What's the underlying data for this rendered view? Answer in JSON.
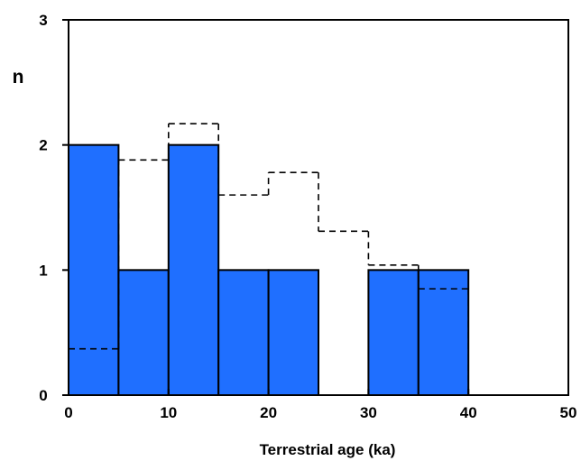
{
  "chart_data": {
    "type": "bar",
    "xlabel": "Terrestrial age (ka)",
    "ylabel": "n",
    "xlim": [
      0,
      50
    ],
    "ylim": [
      0,
      3
    ],
    "x_ticks": [
      "0",
      "10",
      "20",
      "30",
      "40",
      "50"
    ],
    "y_ticks": [
      "0",
      "1",
      "2",
      "3"
    ],
    "bin_width": 5,
    "bin_starts": [
      0,
      5,
      10,
      15,
      20,
      25,
      30,
      35,
      40,
      45
    ],
    "series": [
      {
        "style": "filled-bars",
        "color": "#1f6fff",
        "values": [
          2,
          1,
          2,
          1,
          1,
          0,
          1,
          1,
          0,
          0
        ]
      },
      {
        "style": "dashed-outline",
        "color": "#000000",
        "values": [
          0.37,
          1.88,
          2.17,
          1.6,
          1.78,
          1.31,
          1.04,
          0.85,
          0,
          0
        ]
      }
    ],
    "grid": false
  }
}
